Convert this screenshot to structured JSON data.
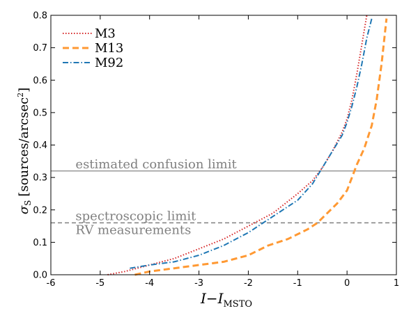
{
  "chart_data": {
    "type": "line",
    "xlabel": "I−I",
    "xlabel_sub": "MSTO",
    "ylabel": "σ",
    "ylabel_sub": "S",
    "ylabel_unit": "[sources/arcsec",
    "ylabel_unit_sup": "2",
    "ylabel_unit_close": "]",
    "xlim": [
      -6,
      1
    ],
    "ylim": [
      0.0,
      0.8
    ],
    "xticks": [
      -6,
      -5,
      -4,
      -3,
      -2,
      -1,
      0,
      1
    ],
    "xtick_labels": [
      "-6",
      "-5",
      "-4",
      "-3",
      "-2",
      "-1",
      "0",
      "1"
    ],
    "yticks": [
      0.0,
      0.1,
      0.2,
      0.3,
      0.4,
      0.5,
      0.6,
      0.7,
      0.8
    ],
    "ytick_labels": [
      "0.0",
      "0.1",
      "0.2",
      "0.3",
      "0.4",
      "0.5",
      "0.6",
      "0.7",
      "0.8"
    ],
    "grid": false,
    "legend_position": "top-left",
    "series": [
      {
        "name": "M3",
        "color": "#d62728",
        "style": "dotted",
        "x": [
          -4.85,
          -4.5,
          -4.0,
          -3.5,
          -3.0,
          -2.5,
          -2.0,
          -1.5,
          -1.0,
          -0.7,
          -0.5,
          -0.3,
          -0.1,
          0.0,
          0.1,
          0.2,
          0.3,
          0.4
        ],
        "y": [
          0.0,
          0.01,
          0.03,
          0.05,
          0.08,
          0.11,
          0.15,
          0.19,
          0.25,
          0.29,
          0.33,
          0.38,
          0.44,
          0.48,
          0.54,
          0.62,
          0.71,
          0.8
        ]
      },
      {
        "name": "M13",
        "color": "#ff9933",
        "style": "dashed",
        "x": [
          -4.3,
          -4.0,
          -3.5,
          -3.0,
          -2.5,
          -2.0,
          -1.6,
          -1.2,
          -0.8,
          -0.6,
          -0.4,
          -0.2,
          0.0,
          0.1,
          0.2,
          0.35,
          0.5,
          0.6,
          0.7,
          0.8
        ],
        "y": [
          0.0,
          0.01,
          0.02,
          0.03,
          0.04,
          0.06,
          0.09,
          0.11,
          0.14,
          0.16,
          0.19,
          0.22,
          0.26,
          0.3,
          0.34,
          0.39,
          0.46,
          0.54,
          0.65,
          0.79
        ]
      },
      {
        "name": "M92",
        "color": "#1f77b4",
        "style": "dashdot",
        "x": [
          -4.4,
          -4.0,
          -3.5,
          -3.0,
          -2.5,
          -2.0,
          -1.5,
          -1.0,
          -0.7,
          -0.5,
          -0.3,
          -0.1,
          0.0,
          0.1,
          0.2,
          0.3,
          0.4,
          0.5
        ],
        "y": [
          0.02,
          0.03,
          0.04,
          0.06,
          0.09,
          0.13,
          0.18,
          0.23,
          0.28,
          0.33,
          0.38,
          0.43,
          0.47,
          0.52,
          0.58,
          0.65,
          0.73,
          0.79
        ]
      }
    ],
    "reference_lines": [
      {
        "y": 0.32,
        "style": "solid",
        "color": "#999999",
        "labels": [
          "estimated confusion limit"
        ],
        "label_x": -5.5
      },
      {
        "y": 0.16,
        "style": "dashed",
        "color": "#808080",
        "labels": [
          "spectroscopic limit",
          "RV measurements"
        ],
        "label_x": -5.5
      }
    ]
  }
}
